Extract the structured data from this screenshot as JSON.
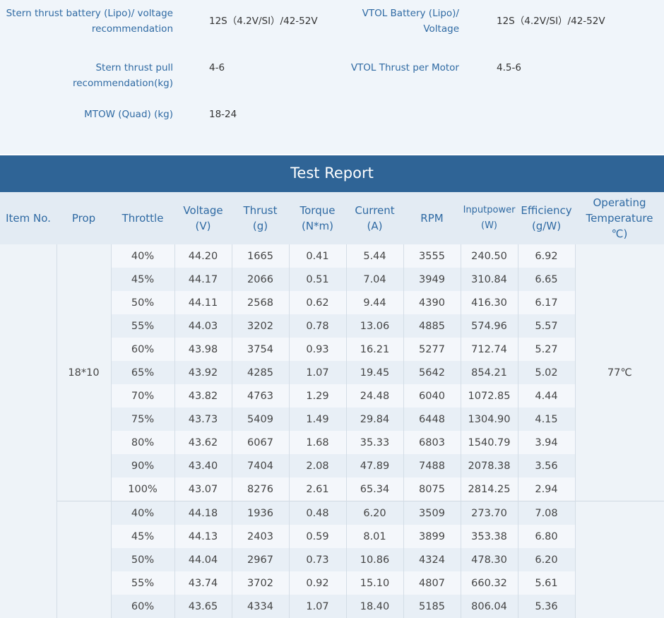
{
  "specs": {
    "left": [
      {
        "label": [
          "Stern thrust battery (Lipo)/ voltage",
          "recommendation"
        ],
        "value": "12S（4.2V/SI）/42-52V"
      },
      {
        "label": [
          "Stern thrust pull recommendation(kg)"
        ],
        "value": "4-6"
      },
      {
        "label": [
          "MTOW (Quad) (kg)"
        ],
        "value": "18-24"
      }
    ],
    "right": [
      {
        "label": [
          "VTOL Battery (Lipo)/",
          "Voltage"
        ],
        "value": "12S（4.2V/SI）/42-52V"
      },
      {
        "label": [
          "VTOL Thrust per Motor"
        ],
        "value": "4.5-6"
      }
    ]
  },
  "report": {
    "title": "Test Report",
    "columns": [
      [
        "Item No."
      ],
      [
        "Prop"
      ],
      [
        "Throttle"
      ],
      [
        "Voltage",
        "(V)"
      ],
      [
        "Thrust",
        "(g)"
      ],
      [
        "Torque",
        "(N*m)"
      ],
      [
        "Current",
        "(A)"
      ],
      [
        "RPM"
      ],
      [
        "Inputpower",
        "(W)"
      ],
      [
        "Efficiency",
        "(g/W)"
      ],
      [
        "Operating",
        "Temperature",
        "℃)"
      ]
    ],
    "groups": [
      {
        "prop": "18*10",
        "temperature": "77℃",
        "rows": [
          [
            "40%",
            "44.20",
            "1665",
            "0.41",
            "5.44",
            "3555",
            "240.50",
            "6.92"
          ],
          [
            "45%",
            "44.17",
            "2066",
            "0.51",
            "7.04",
            "3949",
            "310.84",
            "6.65"
          ],
          [
            "50%",
            "44.11",
            "2568",
            "0.62",
            "9.44",
            "4390",
            "416.30",
            "6.17"
          ],
          [
            "55%",
            "44.03",
            "3202",
            "0.78",
            "13.06",
            "4885",
            "574.96",
            "5.57"
          ],
          [
            "60%",
            "43.98",
            "3754",
            "0.93",
            "16.21",
            "5277",
            "712.74",
            "5.27"
          ],
          [
            "65%",
            "43.92",
            "4285",
            "1.07",
            "19.45",
            "5642",
            "854.21",
            "5.02"
          ],
          [
            "70%",
            "43.82",
            "4763",
            "1.29",
            "24.48",
            "6040",
            "1072.85",
            "4.44"
          ],
          [
            "75%",
            "43.73",
            "5409",
            "1.49",
            "29.84",
            "6448",
            "1304.90",
            "4.15"
          ],
          [
            "80%",
            "43.62",
            "6067",
            "1.68",
            "35.33",
            "6803",
            "1540.79",
            "3.94"
          ],
          [
            "90%",
            "43.40",
            "7404",
            "2.08",
            "47.89",
            "7488",
            "2078.38",
            "3.56"
          ],
          [
            "100%",
            "43.07",
            "8276",
            "2.61",
            "65.34",
            "8075",
            "2814.25",
            "2.94"
          ]
        ]
      },
      {
        "rows": [
          [
            "40%",
            "44.18",
            "1936",
            "0.48",
            "6.20",
            "3509",
            "273.70",
            "7.08"
          ],
          [
            "45%",
            "44.13",
            "2403",
            "0.59",
            "8.01",
            "3899",
            "353.38",
            "6.80"
          ],
          [
            "50%",
            "44.04",
            "2967",
            "0.73",
            "10.86",
            "4324",
            "478.30",
            "6.20"
          ],
          [
            "55%",
            "43.74",
            "3702",
            "0.92",
            "15.10",
            "4807",
            "660.32",
            "5.61"
          ],
          [
            "60%",
            "43.65",
            "4334",
            "1.07",
            "18.40",
            "5185",
            "806.04",
            "5.36"
          ]
        ]
      }
    ]
  }
}
